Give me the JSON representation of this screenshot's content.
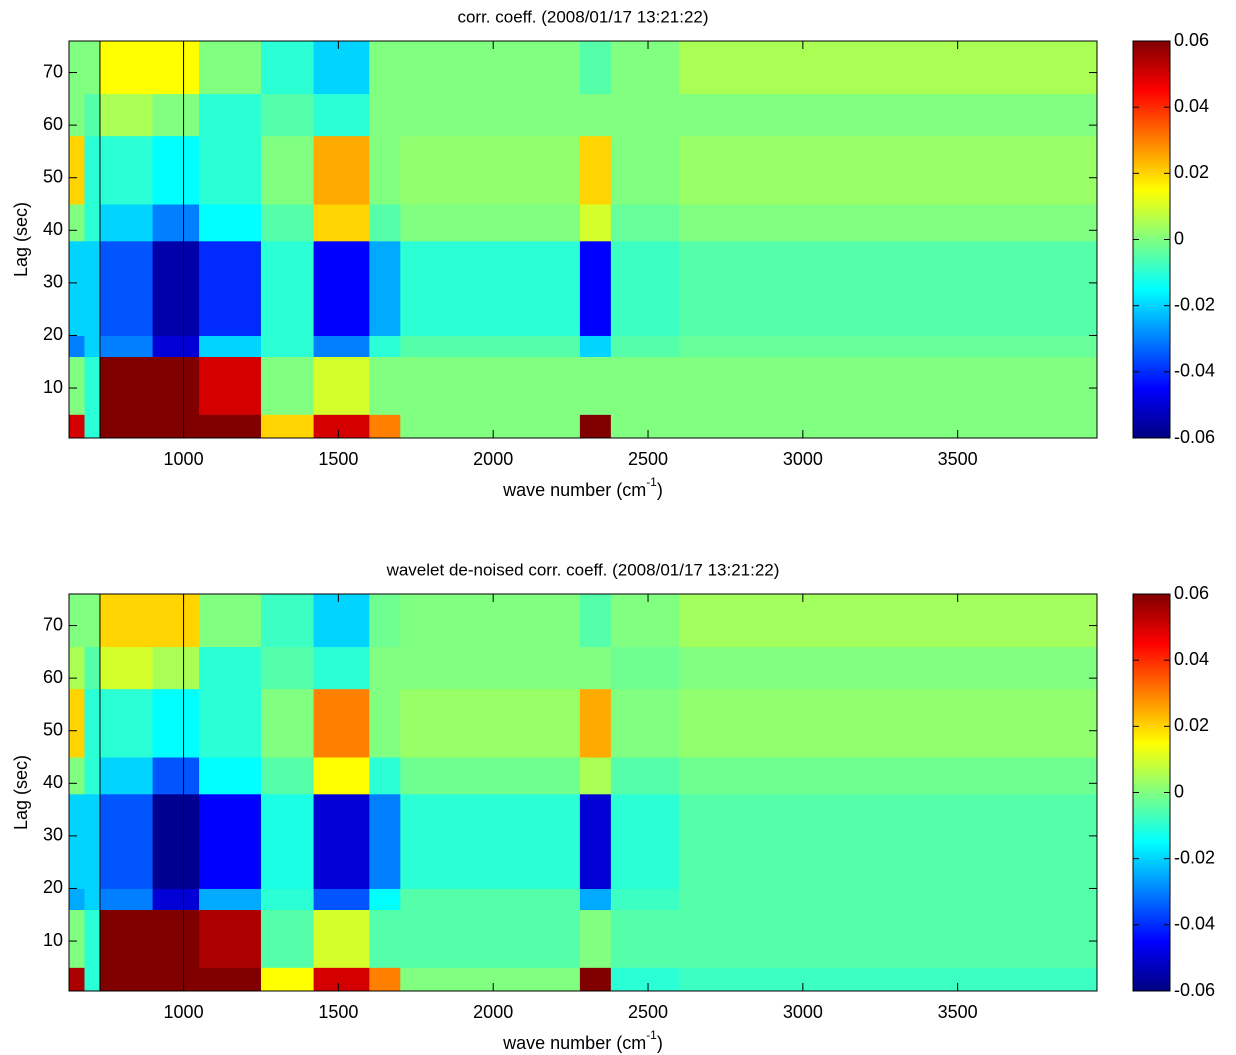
{
  "chart_data": [
    {
      "type": "heatmap",
      "title": "corr. coeff. (2008/01/17 13:21:22)",
      "xlabel": {
        "text": "wave number (cm",
        "sup": "-1",
        "end": ")"
      },
      "ylabel": "Lag (sec)",
      "colormap": "jet",
      "xlim": [
        630,
        3950
      ],
      "ylim": [
        0.5,
        76
      ],
      "xticks": [
        1000,
        1500,
        2000,
        2500,
        3000,
        3500
      ],
      "yticks": [
        10,
        20,
        30,
        40,
        50,
        60,
        70
      ],
      "clim": [
        -0.06,
        0.06
      ],
      "cticks": [
        -0.06,
        -0.04,
        -0.02,
        0,
        0.02,
        0.04,
        0.06
      ],
      "vlines": [
        730,
        1000
      ],
      "x_edges": [
        630,
        680,
        730,
        900,
        1050,
        1250,
        1420,
        1600,
        1700,
        2280,
        2380,
        2600,
        3950
      ],
      "y_edges": [
        0.5,
        5,
        16,
        20,
        38,
        45,
        58,
        66,
        76
      ],
      "z": [
        [
          0.05,
          -0.01,
          0.06,
          0.06,
          0.06,
          0.02,
          0.05,
          0.03,
          0,
          0.06,
          0,
          0
        ],
        [
          0,
          -0.01,
          0.06,
          0.06,
          0.05,
          0,
          0.01,
          0,
          0,
          0,
          0,
          0
        ],
        [
          -0.03,
          -0.02,
          -0.03,
          -0.05,
          -0.02,
          -0.01,
          -0.03,
          -0.01,
          -0.005,
          -0.02,
          -0.005,
          -0.003
        ],
        [
          -0.02,
          -0.02,
          -0.035,
          -0.055,
          -0.04,
          -0.01,
          -0.045,
          -0.025,
          -0.01,
          -0.045,
          -0.008,
          -0.005
        ],
        [
          0,
          -0.01,
          -0.02,
          -0.03,
          -0.015,
          -0.005,
          0.02,
          -0.005,
          0,
          0.01,
          -0.003,
          0
        ],
        [
          0.02,
          -0.01,
          -0.01,
          -0.015,
          -0.01,
          0,
          0.025,
          0,
          0.002,
          0.02,
          0,
          0.003
        ],
        [
          0,
          -0.005,
          0.005,
          0,
          -0.01,
          -0.005,
          -0.01,
          0,
          0,
          0,
          0,
          0
        ],
        [
          0,
          0,
          0.015,
          0.015,
          0,
          -0.01,
          -0.02,
          0,
          0,
          -0.005,
          0,
          0.005
        ]
      ]
    },
    {
      "type": "heatmap",
      "title": "wavelet de-noised corr. coeff. (2008/01/17 13:21:22)",
      "xlabel": {
        "text": "wave number (cm",
        "sup": "-1",
        "end": ")"
      },
      "ylabel": "Lag (sec)",
      "colormap": "jet",
      "xlim": [
        630,
        3950
      ],
      "ylim": [
        0.5,
        76
      ],
      "xticks": [
        1000,
        1500,
        2000,
        2500,
        3000,
        3500
      ],
      "yticks": [
        10,
        20,
        30,
        40,
        50,
        60,
        70
      ],
      "clim": [
        -0.06,
        0.06
      ],
      "cticks": [
        -0.06,
        -0.04,
        -0.02,
        0,
        0.02,
        0.04,
        0.06
      ],
      "vlines": [
        730,
        1000
      ],
      "x_edges": [
        630,
        680,
        730,
        900,
        1050,
        1250,
        1420,
        1600,
        1700,
        2280,
        2380,
        2600,
        3950
      ],
      "y_edges": [
        0.5,
        5,
        16,
        20,
        38,
        45,
        58,
        66,
        76
      ],
      "z": [
        [
          0.055,
          -0.01,
          0.06,
          0.06,
          0.06,
          0.015,
          0.05,
          0.03,
          0,
          0.06,
          -0.01,
          -0.008
        ],
        [
          0,
          -0.01,
          0.06,
          0.06,
          0.055,
          -0.005,
          0.01,
          -0.005,
          -0.005,
          0,
          -0.005,
          -0.005
        ],
        [
          -0.025,
          -0.02,
          -0.03,
          -0.05,
          -0.025,
          -0.01,
          -0.035,
          -0.015,
          -0.005,
          -0.025,
          -0.008,
          -0.005
        ],
        [
          -0.02,
          -0.02,
          -0.035,
          -0.058,
          -0.045,
          -0.012,
          -0.05,
          -0.03,
          -0.01,
          -0.05,
          -0.01,
          -0.005
        ],
        [
          0,
          -0.01,
          -0.02,
          -0.035,
          -0.015,
          -0.005,
          0.015,
          -0.01,
          -0.002,
          0.005,
          -0.005,
          -0.002
        ],
        [
          0.02,
          -0.01,
          -0.01,
          -0.015,
          -0.01,
          0,
          0.03,
          0,
          0.003,
          0.025,
          0,
          0.002
        ],
        [
          0.005,
          -0.005,
          0.01,
          0.005,
          -0.01,
          -0.005,
          -0.01,
          0,
          0,
          0,
          -0.002,
          0
        ],
        [
          0,
          0,
          0.02,
          0.02,
          0,
          -0.008,
          -0.02,
          -0.002,
          0,
          -0.005,
          0,
          0.004
        ]
      ]
    }
  ]
}
